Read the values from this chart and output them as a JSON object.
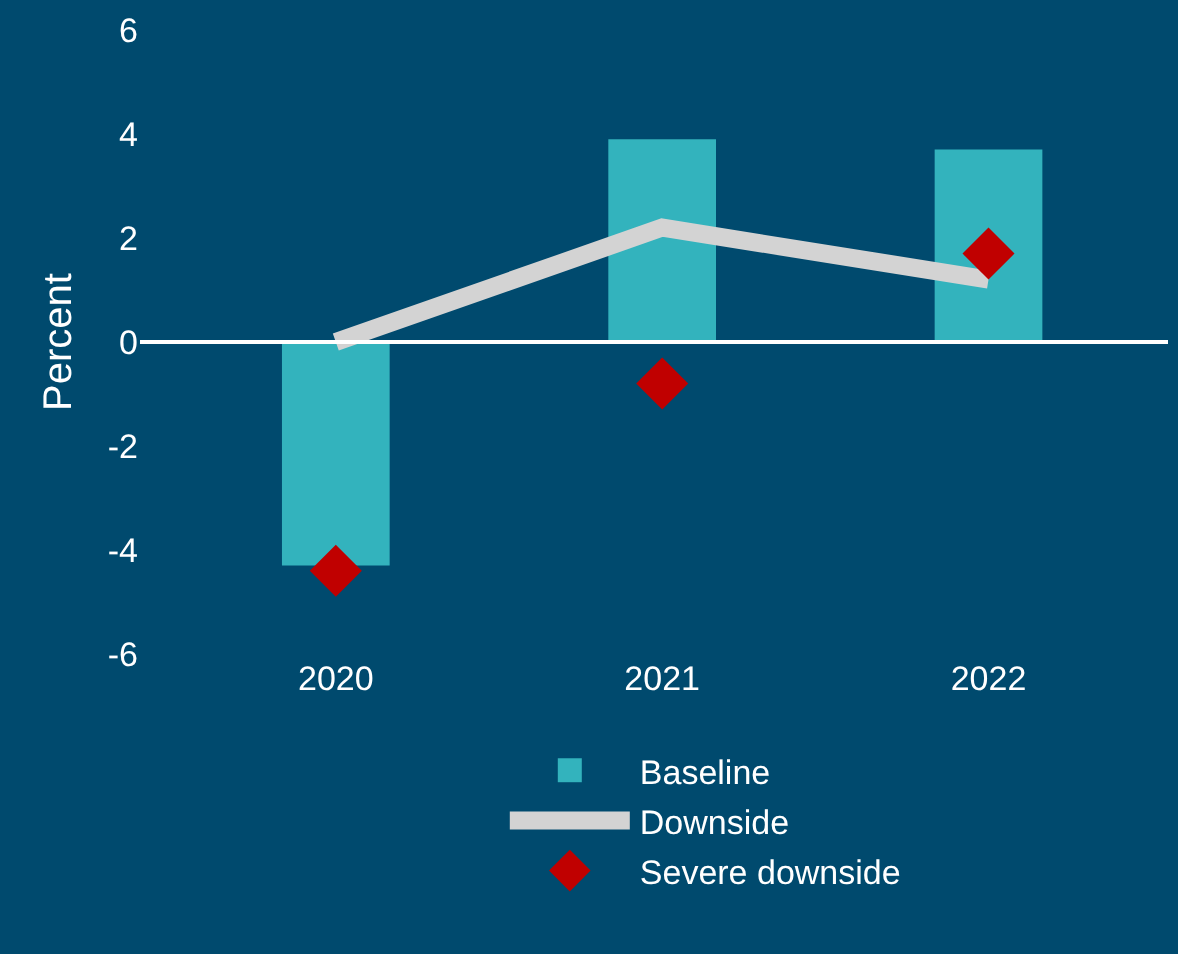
{
  "chart_data": {
    "type": "bar",
    "ylabel": "Percent",
    "categories": [
      "2020",
      "2021",
      "2022"
    ],
    "series": [
      {
        "name": "Baseline",
        "color": "#33b3bd",
        "values": [
          -4.3,
          3.9,
          3.7
        ]
      },
      {
        "name": "Downside",
        "type": "line",
        "color": "#d3d3d3",
        "values": [
          0.0,
          2.2,
          1.2
        ],
        "marker": "none"
      },
      {
        "name": "Severe downside",
        "type": "scatter",
        "color": "#c00000",
        "values": [
          -4.4,
          -0.8,
          1.7
        ],
        "marker": "diamond"
      }
    ],
    "ylim": [
      -6,
      6
    ],
    "yticks": [
      -6,
      -4,
      -2,
      0,
      2,
      4,
      6
    ],
    "ref_lines": [
      {
        "axis": "y",
        "value": 0,
        "color": "#ffffff"
      }
    ],
    "grid": false,
    "legend": "bottom"
  }
}
